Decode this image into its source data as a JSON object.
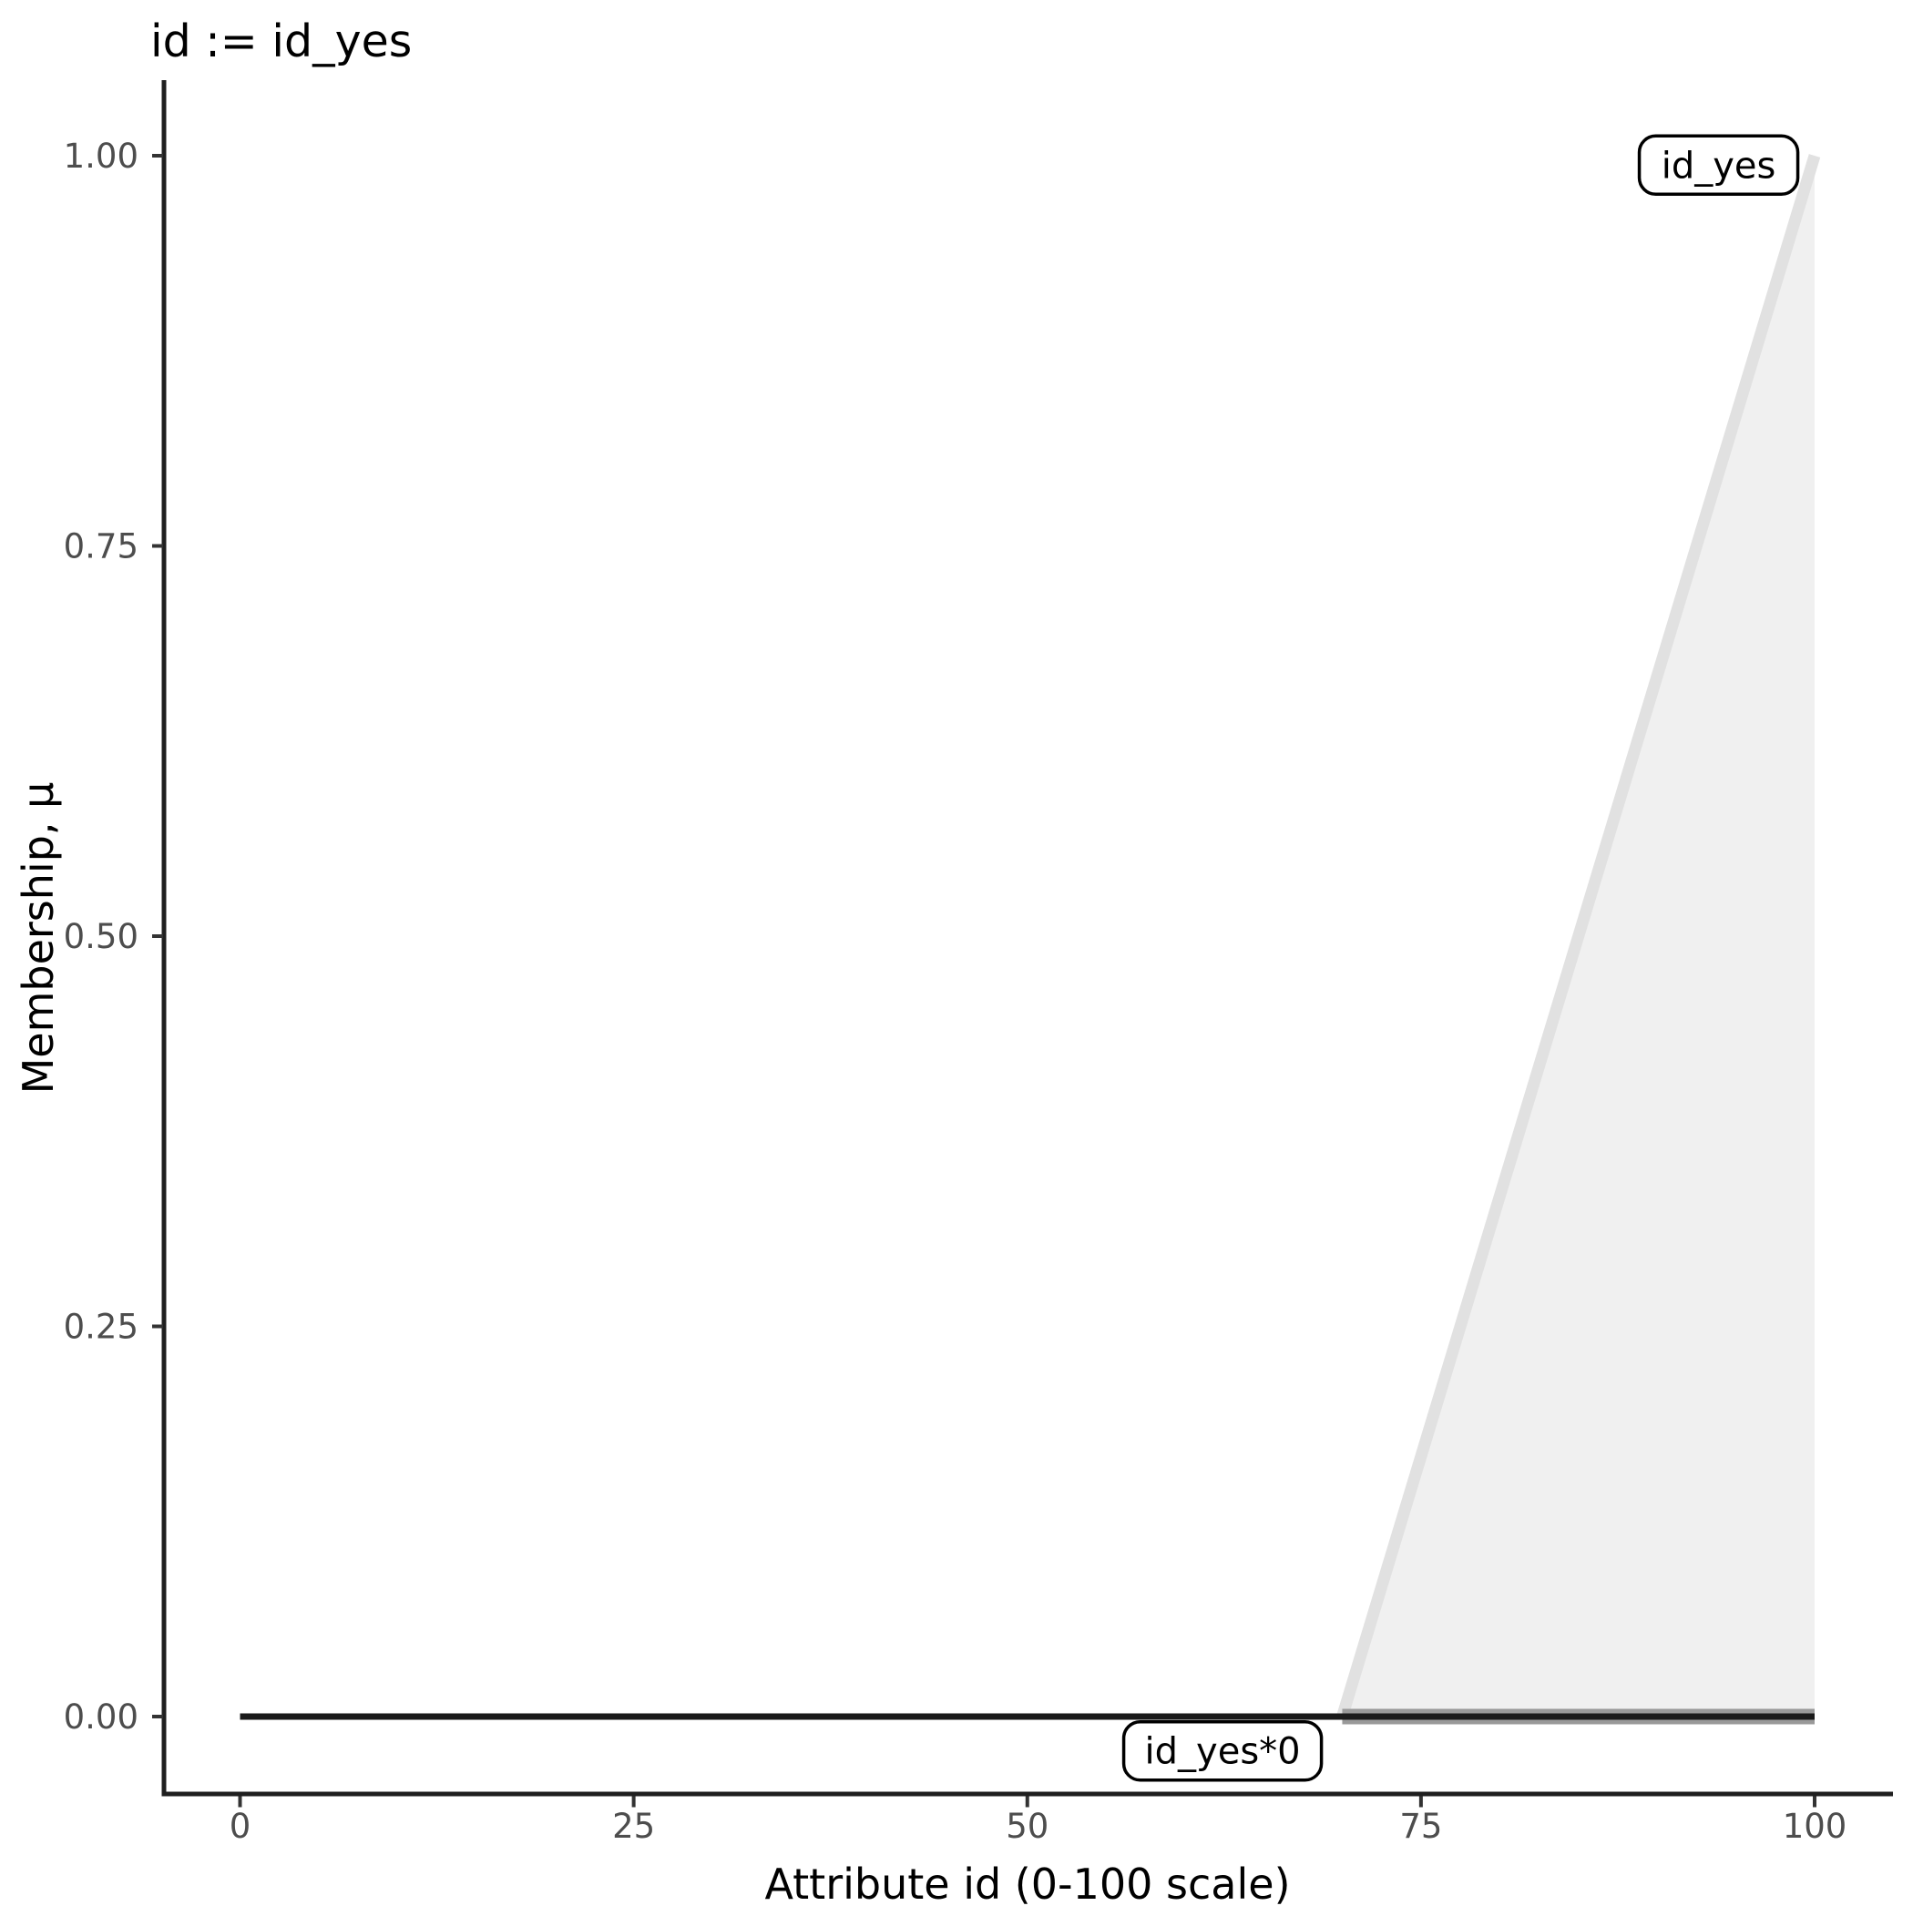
{
  "chart_data": {
    "type": "area",
    "title": "id := id_yes",
    "xlabel": "Attribute id (0-100 scale)",
    "ylabel": "Membership, μ",
    "xlim": [
      0,
      100
    ],
    "ylim": [
      0,
      1
    ],
    "grid": false,
    "legend_position": "none",
    "x_ticks": [
      {
        "value": 0,
        "label": "0"
      },
      {
        "value": 25,
        "label": "25"
      },
      {
        "value": 50,
        "label": "50"
      },
      {
        "value": 75,
        "label": "75"
      },
      {
        "value": 100,
        "label": "100"
      }
    ],
    "y_ticks": [
      {
        "value": 0.0,
        "label": "0.00"
      },
      {
        "value": 0.25,
        "label": "0.25"
      },
      {
        "value": 0.5,
        "label": "0.50"
      },
      {
        "value": 0.75,
        "label": "0.75"
      },
      {
        "value": 1.0,
        "label": "1.00"
      }
    ],
    "series": [
      {
        "name": "id_yes",
        "description": "triangular fuzzy membership function rising from 0 at x=70 to 1 at x=100",
        "points": [
          [
            70,
            0
          ],
          [
            100,
            1
          ]
        ],
        "area": true,
        "fill": "#f0f0f0",
        "stroke": "#e1e1e1",
        "stroke_width": 13,
        "baseline_stroke": "#999999",
        "baseline_width": 17
      },
      {
        "name": "id_yes*0",
        "description": "membership function multiplied by zero: constant 0 from x=0 to x=100",
        "points": [
          [
            0,
            0
          ],
          [
            100,
            0
          ]
        ],
        "area": false,
        "fill": "none",
        "stroke": "#1a1a1a",
        "stroke_width": 7
      }
    ],
    "annotations": [
      {
        "label": "id_yes",
        "x": 93.9,
        "y": 0.994
      },
      {
        "label": "id_yes*0",
        "x": 62.4,
        "y": -0.022
      }
    ],
    "colors": {
      "background": "#ffffff",
      "axis_line": "#1f1f1f",
      "tick_mark": "#333333",
      "tick_label": "#4d4d4d",
      "annotation_border": "#000000",
      "annotation_fill": "#ffffff"
    }
  }
}
